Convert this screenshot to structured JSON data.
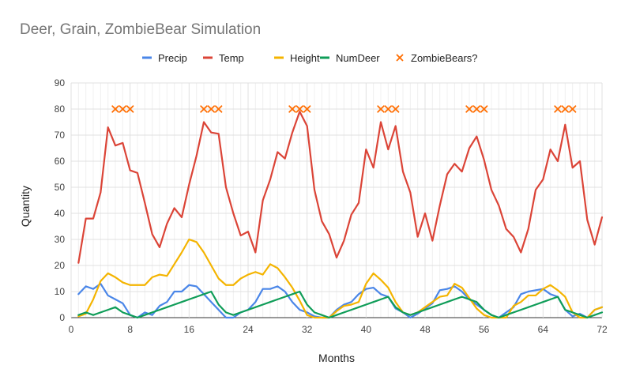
{
  "chart_data": {
    "type": "line",
    "title": "Deer, Grain, ZombieBear Simulation",
    "xlabel": "Months",
    "ylabel": "Quantity",
    "xlim": [
      0,
      72
    ],
    "ylim": [
      0,
      90
    ],
    "x_ticks": [
      0,
      8,
      16,
      24,
      32,
      40,
      48,
      56,
      64,
      72
    ],
    "y_ticks": [
      0,
      10,
      20,
      30,
      40,
      50,
      60,
      70,
      80,
      90
    ],
    "grid": true,
    "legend_position": "top",
    "x": [
      1,
      2,
      3,
      4,
      5,
      6,
      7,
      8,
      9,
      10,
      11,
      12,
      13,
      14,
      15,
      16,
      17,
      18,
      19,
      20,
      21,
      22,
      23,
      24,
      25,
      26,
      27,
      28,
      29,
      30,
      31,
      32,
      33,
      34,
      35,
      36,
      37,
      38,
      39,
      40,
      41,
      42,
      43,
      44,
      45,
      46,
      47,
      48,
      49,
      50,
      51,
      52,
      53,
      54,
      55,
      56,
      57,
      58,
      59,
      60,
      61,
      62,
      63,
      64,
      65,
      66,
      67,
      68,
      69,
      70,
      71,
      72
    ],
    "series": [
      {
        "name": "Precip",
        "type": "line",
        "color": "#4a86e8",
        "values": [
          9,
          12,
          11,
          13,
          8.5,
          7,
          5.5,
          1,
          0,
          2,
          1,
          4.5,
          6,
          10,
          10,
          12.5,
          12,
          9,
          6,
          3,
          0,
          0,
          2,
          3,
          6,
          11,
          11,
          12,
          10,
          6,
          3,
          2,
          0.5,
          0,
          0,
          3,
          5,
          6,
          9,
          11,
          11.5,
          9,
          8,
          3.5,
          2,
          0,
          1.5,
          3.5,
          5.5,
          10.5,
          11,
          12,
          10,
          7,
          5,
          3,
          1,
          0,
          2,
          4,
          9,
          10,
          10.5,
          11,
          9,
          8,
          3,
          0.5,
          1.5,
          0,
          3,
          4
        ]
      },
      {
        "name": "Temp",
        "type": "line",
        "color": "#db4437",
        "values": [
          21,
          38,
          38,
          48,
          73,
          66,
          67,
          56.5,
          55.5,
          44,
          32,
          27,
          36,
          42,
          38.5,
          51,
          62,
          75,
          71,
          70.5,
          50,
          40,
          31.5,
          33,
          25,
          45,
          53,
          63.5,
          61,
          71,
          79,
          73.5,
          49,
          37,
          32,
          23,
          29.5,
          39.5,
          44,
          64.5,
          57.5,
          75,
          64.5,
          73.5,
          56,
          48,
          31,
          40,
          29.5,
          43,
          55,
          59,
          56,
          65,
          69.5,
          60.5,
          49,
          43,
          34,
          31,
          25,
          34,
          49,
          53,
          64.5,
          60,
          74,
          57.5,
          60,
          37.5,
          28,
          38.5
        ]
      },
      {
        "name": "Height",
        "type": "line",
        "color": "#f4b400",
        "values": [
          0.5,
          1.5,
          7,
          14,
          17,
          15.5,
          13.5,
          12.5,
          12.5,
          12.5,
          15.5,
          16.5,
          16,
          20.5,
          25,
          30,
          29,
          25,
          20,
          15,
          12.5,
          12.5,
          15,
          16.5,
          17.5,
          16.5,
          20.5,
          19,
          15.5,
          11.5,
          6.5,
          1,
          0,
          0,
          0,
          2.5,
          4.5,
          5,
          6,
          13,
          17,
          14.5,
          11.5,
          6,
          2,
          1,
          2,
          4,
          6,
          8,
          8.5,
          13,
          11.5,
          7.5,
          3.5,
          1,
          0,
          0,
          0,
          4.5,
          6,
          8.5,
          8.5,
          11,
          12.5,
          10.5,
          8,
          2,
          0,
          0,
          3,
          4
        ]
      },
      {
        "name": "NumDeer",
        "type": "line",
        "color": "#0f9d58",
        "values": [
          1,
          2,
          1,
          2,
          3,
          4,
          2,
          1,
          0,
          1,
          2,
          3,
          4,
          5,
          6,
          7,
          8,
          9,
          10,
          5,
          2,
          1,
          2,
          3,
          4,
          5,
          6,
          7,
          8,
          9,
          10,
          5,
          2,
          1,
          0,
          1,
          2,
          3,
          4,
          5,
          6,
          7,
          8,
          4,
          2,
          1,
          2,
          3,
          4,
          5,
          6,
          7,
          8,
          7,
          6,
          3,
          1,
          0,
          1,
          2,
          3,
          4,
          5,
          6,
          7,
          8,
          3,
          2,
          1,
          0,
          1,
          2
        ]
      },
      {
        "name": "ZombieBears?",
        "type": "scatter",
        "color": "#ff6d00",
        "x": [
          6,
          7,
          8,
          18,
          19,
          20,
          30,
          31,
          32,
          42,
          43,
          44,
          54,
          55,
          56,
          66,
          67,
          68
        ],
        "values": [
          80,
          80,
          80,
          80,
          80,
          80,
          80,
          80,
          80,
          80,
          80,
          80,
          80,
          80,
          80,
          80,
          80,
          80
        ]
      }
    ]
  }
}
